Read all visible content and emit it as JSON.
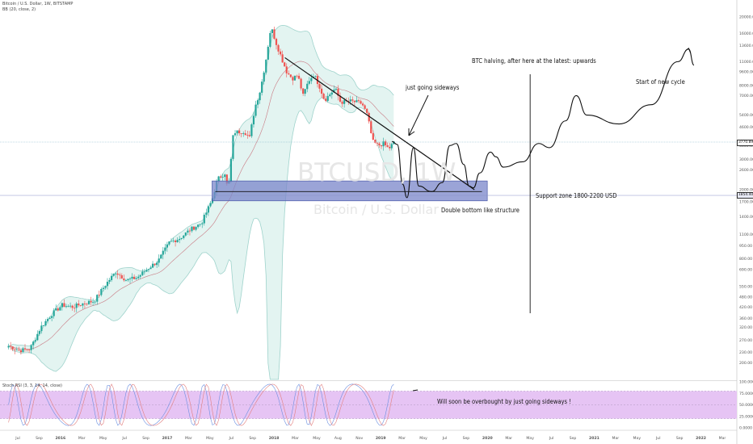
{
  "chart_data": {
    "type": "candlestick",
    "title": "Bitcoin / U.S. Dollar, 1W, BITSTAMP",
    "indicator_label": "BB (20, close, 2)",
    "watermark_symbol": "BTCUSD, 1W",
    "watermark_name": "Bitcoin / U.S. Dollar",
    "y_scale": "log",
    "ylim": [
      160,
      25000
    ],
    "y_ticks": [
      "25000.00",
      "20000.00",
      "16000.00",
      "13600.00",
      "11000.00",
      "9600.00",
      "8000.00",
      "7000.00",
      "5400.00",
      "4600.00",
      "3600.00",
      "3000.00",
      "2600.00",
      "2000.00",
      "1700.00",
      "1400.00",
      "1100.00",
      "950.00",
      "800.00",
      "690.00",
      "550.00",
      "480.00",
      "420.00",
      "360.00",
      "320.00",
      "270.00",
      "230.00",
      "200.00",
      "162.00"
    ],
    "price_badges": [
      {
        "label": "3770.89",
        "value": 3770.89
      },
      {
        "label": "1854.40",
        "value": 1854.4
      }
    ],
    "x_ticks": [
      "Jul",
      "Sep",
      "2016",
      "Mar",
      "May",
      "Jul",
      "Sep",
      "2017",
      "Mar",
      "May",
      "Jul",
      "Sep",
      "2018",
      "Mar",
      "May",
      "Aug",
      "Nov",
      "2019",
      "Mar",
      "May",
      "Jul",
      "Sep",
      "2020",
      "Mar",
      "May",
      "Jul",
      "Sep",
      "2021",
      "Mar",
      "May",
      "Jul",
      "Sep",
      "2022",
      "Mar"
    ],
    "weekly_close_path": [
      [
        2015.5,
        250
      ],
      [
        2015.6,
        235
      ],
      [
        2015.7,
        240
      ],
      [
        2015.8,
        320
      ],
      [
        2015.9,
        380
      ],
      [
        2016.0,
        430
      ],
      [
        2016.1,
        420
      ],
      [
        2016.2,
        440
      ],
      [
        2016.3,
        455
      ],
      [
        2016.4,
        560
      ],
      [
        2016.5,
        670
      ],
      [
        2016.6,
        600
      ],
      [
        2016.7,
        620
      ],
      [
        2016.8,
        700
      ],
      [
        2016.9,
        780
      ],
      [
        2017.0,
        990
      ],
      [
        2017.1,
        1050
      ],
      [
        2017.2,
        1180
      ],
      [
        2017.3,
        1280
      ],
      [
        2017.4,
        1750
      ],
      [
        2017.45,
        2300
      ],
      [
        2017.52,
        2500
      ],
      [
        2017.55,
        1950
      ],
      [
        2017.6,
        4300
      ],
      [
        2017.7,
        4350
      ],
      [
        2017.75,
        4000
      ],
      [
        2017.8,
        6000
      ],
      [
        2017.85,
        7500
      ],
      [
        2017.9,
        11000
      ],
      [
        2017.95,
        17500
      ],
      [
        2018.0,
        14000
      ],
      [
        2018.05,
        11500
      ],
      [
        2018.1,
        9500
      ],
      [
        2018.15,
        8800
      ],
      [
        2018.2,
        9200
      ],
      [
        2018.25,
        7000
      ],
      [
        2018.3,
        8500
      ],
      [
        2018.35,
        9300
      ],
      [
        2018.4,
        8000
      ],
      [
        2018.45,
        6600
      ],
      [
        2018.55,
        7700
      ],
      [
        2018.6,
        6400
      ],
      [
        2018.7,
        6500
      ],
      [
        2018.8,
        6300
      ],
      [
        2018.85,
        5400
      ],
      [
        2018.9,
        3800
      ],
      [
        2018.95,
        3600
      ],
      [
        2019.0,
        3700
      ],
      [
        2019.05,
        3450
      ],
      [
        2019.1,
        3770
      ]
    ],
    "series": [
      {
        "name": "Price",
        "role": "candles"
      },
      {
        "name": "BB (20, close, 2)",
        "role": "bands"
      }
    ],
    "support_zone": {
      "low": 1800,
      "high": 2200,
      "label": "Support zone 1800-2200 USD"
    },
    "trendline": {
      "from": [
        2018.08,
        11600
      ],
      "to": [
        2019.85,
        2000
      ]
    },
    "halving_line_x": 2020.37,
    "projection_path": [
      [
        2019.08,
        3800
      ],
      [
        2019.13,
        3650
      ],
      [
        2019.18,
        2150
      ],
      [
        2019.22,
        1800
      ],
      [
        2019.28,
        3500
      ],
      [
        2019.33,
        2100
      ],
      [
        2019.45,
        1950
      ],
      [
        2019.55,
        2200
      ],
      [
        2019.62,
        3600
      ],
      [
        2019.68,
        3700
      ],
      [
        2019.75,
        2800
      ],
      [
        2019.8,
        2100
      ],
      [
        2019.84,
        2050
      ],
      [
        2019.9,
        2500
      ],
      [
        2020.0,
        3300
      ],
      [
        2020.05,
        3100
      ],
      [
        2020.12,
        2700
      ],
      [
        2020.3,
        2900
      ],
      [
        2020.45,
        3700
      ],
      [
        2020.55,
        3500
      ],
      [
        2020.7,
        5000
      ],
      [
        2020.8,
        7000
      ],
      [
        2020.9,
        5400
      ],
      [
        2021.2,
        4800
      ],
      [
        2021.5,
        6200
      ],
      [
        2021.75,
        11000
      ],
      [
        2021.85,
        13000
      ],
      [
        2021.9,
        10500
      ]
    ],
    "annotations": [
      "just going sideways",
      "BTC halving, after here at the latest: upwards",
      "Start of new cycle",
      "Double bottom like structure",
      "Support zone 1800-2200 USD",
      "Will soon be overbought by just going sideways !"
    ],
    "oscillator": {
      "label": "Stoch RSI (3, 3, 14, 14, close)",
      "ylim": [
        0,
        100
      ],
      "y_ticks": [
        "100.0000",
        "75.0000",
        "50.0000",
        "25.0000",
        "0.0000"
      ],
      "band": [
        20,
        80
      ]
    },
    "colors": {
      "up": "#26a69a",
      "down": "#ef5350",
      "band_fill": "#e3f4f1",
      "band_line": "#9fd3cc",
      "basis": "#c97b84",
      "support_fill": "#7a86c9",
      "osc_fill": "#e6c4f4",
      "k_line": "#6b8fe0",
      "d_line": "#e27f7f"
    }
  }
}
